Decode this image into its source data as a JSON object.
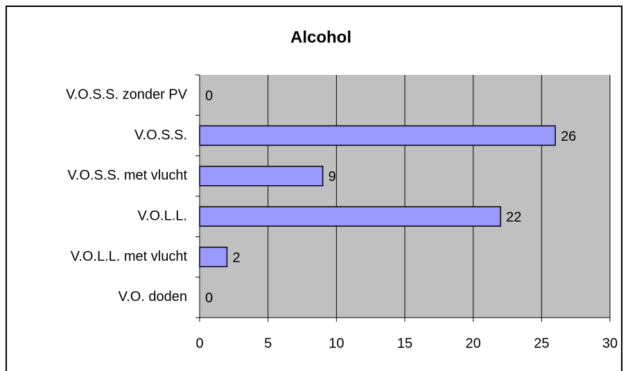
{
  "chart_data": {
    "type": "bar",
    "orientation": "horizontal",
    "title": "Alcohol",
    "categories": [
      "V.O.S.S. zonder PV",
      "V.O.S.S.",
      "V.O.S.S. met vlucht",
      "V.O.L.L. ",
      "V.O.L.L. met vlucht",
      "V.O. doden"
    ],
    "values": [
      0,
      26,
      9,
      22,
      2,
      0
    ],
    "color": "#9999ff",
    "xlim": [
      0,
      30
    ],
    "xticks": [
      0,
      5,
      10,
      15,
      20,
      25,
      30
    ],
    "grid": true
  }
}
